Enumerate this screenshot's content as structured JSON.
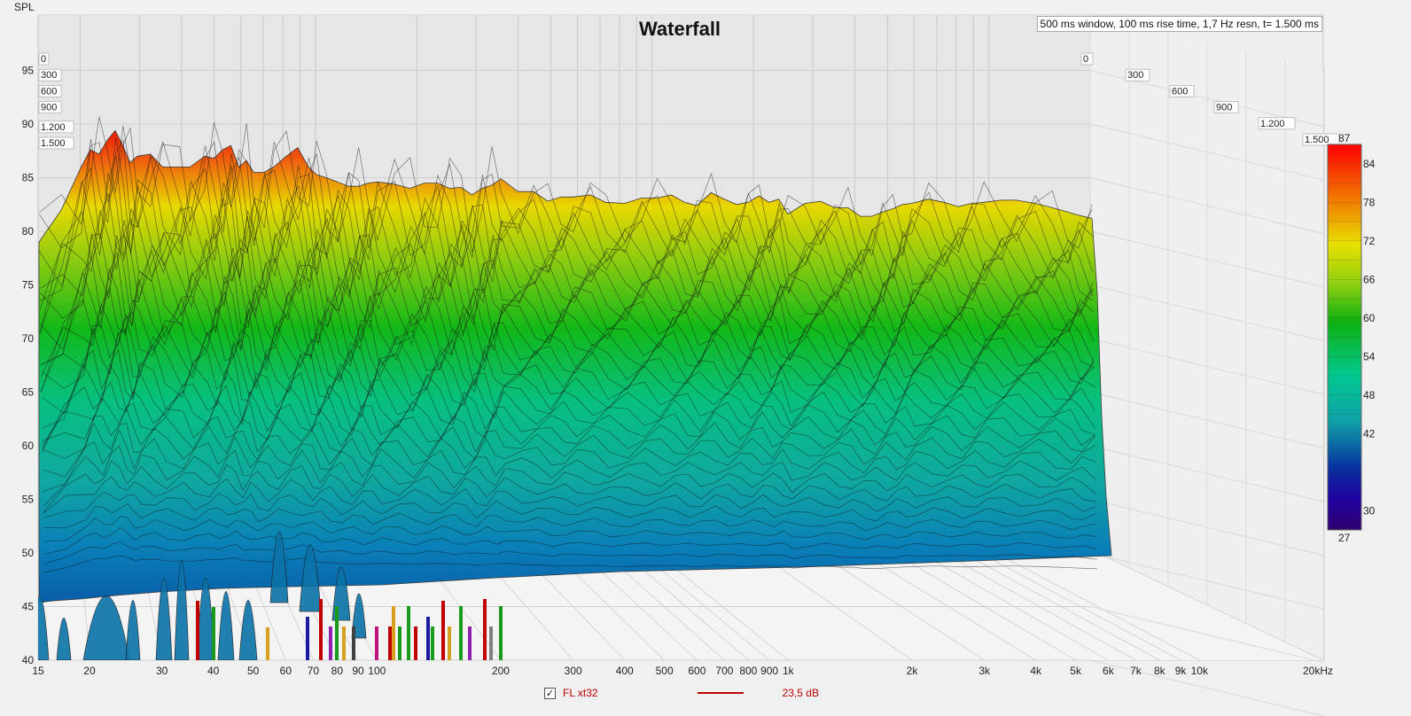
{
  "window": {
    "spl_label": "SPL"
  },
  "chart_data": {
    "type": "waterfall",
    "title": "Waterfall",
    "settings_text": "500 ms window, 100 ms rise time,  1,7 Hz resn, t= 1.500 ms",
    "ylabel": "SPL",
    "ylim": [
      40,
      97
    ],
    "y_ticks": [
      "95",
      "90",
      "85",
      "80",
      "75",
      "70",
      "65",
      "60",
      "55",
      "50",
      "45",
      "40"
    ],
    "x_scale": "log",
    "xlim_hz": [
      15,
      20000
    ],
    "x_ticks": [
      {
        "hz": 15,
        "label": "15"
      },
      {
        "hz": 20,
        "label": "20"
      },
      {
        "hz": 30,
        "label": "30"
      },
      {
        "hz": 40,
        "label": "40"
      },
      {
        "hz": 50,
        "label": "50"
      },
      {
        "hz": 60,
        "label": "60"
      },
      {
        "hz": 70,
        "label": "70"
      },
      {
        "hz": 80,
        "label": "80"
      },
      {
        "hz": 90,
        "label": "90"
      },
      {
        "hz": 100,
        "label": "100"
      },
      {
        "hz": 200,
        "label": "200"
      },
      {
        "hz": 300,
        "label": "300"
      },
      {
        "hz": 400,
        "label": "400"
      },
      {
        "hz": 500,
        "label": "500"
      },
      {
        "hz": 600,
        "label": "600"
      },
      {
        "hz": 700,
        "label": "700"
      },
      {
        "hz": 800,
        "label": "800"
      },
      {
        "hz": 900,
        "label": "900"
      },
      {
        "hz": 1000,
        "label": "1k"
      },
      {
        "hz": 2000,
        "label": "2k"
      },
      {
        "hz": 3000,
        "label": "3k"
      },
      {
        "hz": 4000,
        "label": "4k"
      },
      {
        "hz": 5000,
        "label": "5k"
      },
      {
        "hz": 6000,
        "label": "6k"
      },
      {
        "hz": 7000,
        "label": "7k"
      },
      {
        "hz": 8000,
        "label": "8k"
      },
      {
        "hz": 9000,
        "label": "9k"
      },
      {
        "hz": 10000,
        "label": "10k"
      },
      {
        "hz": 20000,
        "label": "20kHz"
      }
    ],
    "time_ticks": [
      "0",
      "300",
      "600",
      "900",
      "1.200",
      "1.500"
    ],
    "colorbar": {
      "min_label": "27",
      "max_label": "87",
      "ticks": [
        "84",
        "78",
        "72",
        "66",
        "60",
        "54",
        "48",
        "42",
        "30"
      ]
    },
    "front_slice_spl": {
      "hz": [
        15,
        17,
        19,
        20,
        21,
        22,
        23,
        24,
        25,
        26,
        28,
        30,
        33,
        35,
        38,
        40,
        42,
        44,
        46,
        48,
        50,
        53,
        56,
        60,
        64,
        68,
        71,
        75,
        80,
        85,
        90,
        95,
        100,
        110,
        120,
        130,
        140,
        150,
        160,
        170,
        180,
        190,
        200,
        220,
        240,
        260,
        280,
        300,
        330,
        360,
        400,
        440,
        480,
        520,
        560,
        600,
        650,
        700,
        750,
        800,
        850,
        900,
        950,
        1000,
        1100,
        1200,
        1300,
        1400,
        1500,
        1600,
        1700,
        1800,
        1900,
        2000,
        2200,
        2400,
        2600,
        2800,
        3000,
        3300,
        3600,
        4000,
        4400,
        4800,
        5100,
        5500
      ],
      "spl": [
        79,
        82,
        86,
        87.6,
        87.2,
        88.5,
        89.4,
        88,
        86.4,
        87,
        87.2,
        86,
        86,
        86,
        87,
        86.8,
        87.6,
        88,
        86,
        86.6,
        85.5,
        85.5,
        86,
        87,
        87.8,
        86,
        85.3,
        85,
        84.6,
        84.2,
        84.2,
        84.5,
        84.6,
        84.4,
        84,
        84.5,
        84.5,
        84,
        84.1,
        83.4,
        84,
        84.3,
        84.9,
        83.7,
        83.7,
        82.8,
        83.2,
        83.2,
        83.4,
        82.7,
        82.6,
        83.1,
        83.1,
        83.4,
        82.7,
        82.4,
        83.6,
        83,
        82.5,
        82.7,
        83.3,
        82.7,
        83,
        81.6,
        82.6,
        82.8,
        82.2,
        82.2,
        81.4,
        81.4,
        81.8,
        82.1,
        82.5,
        82.6,
        83,
        82.7,
        82.3,
        82.6,
        82.7,
        82.9,
        82.9,
        82.6,
        82.2,
        81.8,
        81.5,
        81.2
      ]
    },
    "legend": {
      "checked": true,
      "series_name": "FL xt32",
      "offset": "23,5 dB",
      "series_color": "#c00000"
    }
  }
}
